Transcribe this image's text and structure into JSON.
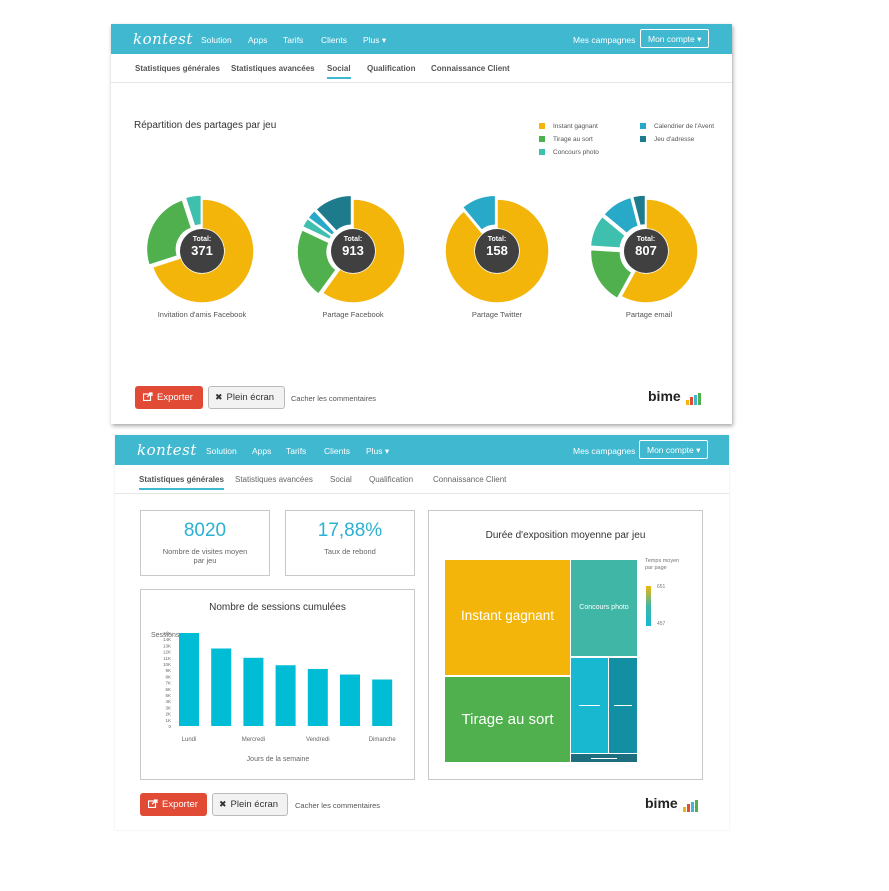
{
  "colors": {
    "accent": "#3fb8d0",
    "instant_gagnant": "#f4b50a",
    "tirage_au_sort": "#4fb04d",
    "concours_photo": "#3fbfae",
    "calendrier_avent": "#29a9c8",
    "jeu_adresse": "#1d7b8c",
    "export_button": "#e14a35",
    "kpi_value": "#2bb1d1",
    "bar": "#00bcd4"
  },
  "panel1": {
    "nav": {
      "logo": "kontest",
      "items": [
        "Solution",
        "Apps",
        "Tarifs",
        "Clients",
        "Plus ▾"
      ],
      "campaigns": "Mes campagnes",
      "account": "Mon compte ▾"
    },
    "tabs": [
      "Statistiques générales",
      "Statistiques avancées",
      "Social",
      "Qualification",
      "Connaissance Client"
    ],
    "active_tab": "Social",
    "title": "Répartition des partages par jeu",
    "legend": [
      "Instant gagnant",
      "Tirage au sort",
      "Concours photo",
      "Calendrier de l'Avent",
      "Jeu d'adresse"
    ],
    "total_label": "Total:",
    "chart_data": {
      "type": "pie",
      "series_names": [
        "Instant gagnant",
        "Tirage au sort",
        "Concours photo",
        "Calendrier de l'Avent",
        "Jeu d'adresse"
      ],
      "charts": [
        {
          "label": "Invitation d'amis Facebook",
          "total": "371",
          "slices": [
            0.7,
            0.25,
            0.05,
            0.0,
            0.0
          ]
        },
        {
          "label": "Partage Facebook",
          "total": "913",
          "slices": [
            0.6,
            0.22,
            0.03,
            0.03,
            0.12
          ]
        },
        {
          "label": "Partage Twitter",
          "total": "158",
          "slices": [
            0.89,
            0.0,
            0.0,
            0.11,
            0.0
          ]
        },
        {
          "label": "Partage email",
          "total": "807",
          "slices": [
            0.58,
            0.18,
            0.1,
            0.1,
            0.04
          ]
        }
      ]
    },
    "footer": {
      "export": "Exporter",
      "fullscreen": "Plein écran",
      "hide_comments": "Cacher les commentaires",
      "brand": "bime"
    }
  },
  "panel2": {
    "nav": {
      "logo": "kontest",
      "items": [
        "Solution",
        "Apps",
        "Tarifs",
        "Clients",
        "Plus ▾"
      ],
      "campaigns": "Mes campagnes",
      "account": "Mon compte ▾"
    },
    "tabs": [
      "Statistiques générales",
      "Statistiques avancées",
      "Social",
      "Qualification",
      "Connaissance Client"
    ],
    "active_tab": "Statistiques générales",
    "kpi1": {
      "value": "8020",
      "label_line1": "Nombre de visites moyen",
      "label_line2": "par jeu"
    },
    "kpi2": {
      "value": "17,88%",
      "label": "Taux de rebond"
    },
    "sessions": {
      "title": "Nombre de sessions cumulées",
      "chart_data": {
        "type": "bar",
        "ylabel": "Sessions",
        "xlabel": "Jours de la semaine",
        "y_ticks": [
          "15K",
          "14K",
          "13K",
          "12K",
          "11K",
          "10K",
          "9K",
          "8K",
          "7K",
          "6K",
          "5K",
          "4K",
          "3K",
          "2K",
          "1K",
          "0"
        ],
        "ylim": [
          0,
          15000
        ],
        "x_tick_labels": [
          "Lundi",
          "Mercredi",
          "Vendredi",
          "Dimanche"
        ],
        "values": [
          15000,
          12500,
          11000,
          9800,
          9200,
          8300,
          7500
        ]
      }
    },
    "exposure": {
      "title": "Durée d'exposition moyenne par jeu",
      "legend_title_line1": "Temps moyen",
      "legend_title_line2": "par page",
      "legend_max": "651",
      "legend_min": "457",
      "chart_data": {
        "type": "heatmap",
        "cells": [
          {
            "name": "Instant gagnant",
            "label": "Instant gagnant"
          },
          {
            "name": "Tirage au sort",
            "label": "Tirage au sort"
          },
          {
            "name": "Concours photo",
            "label": "Concours photo"
          },
          {
            "name": "Calendrier de l'Avent",
            "label": ""
          },
          {
            "name": "Jeu d'adresse",
            "label": ""
          }
        ]
      }
    },
    "footer": {
      "export": "Exporter",
      "fullscreen": "Plein écran",
      "hide_comments": "Cacher les commentaires",
      "brand": "bime"
    }
  }
}
